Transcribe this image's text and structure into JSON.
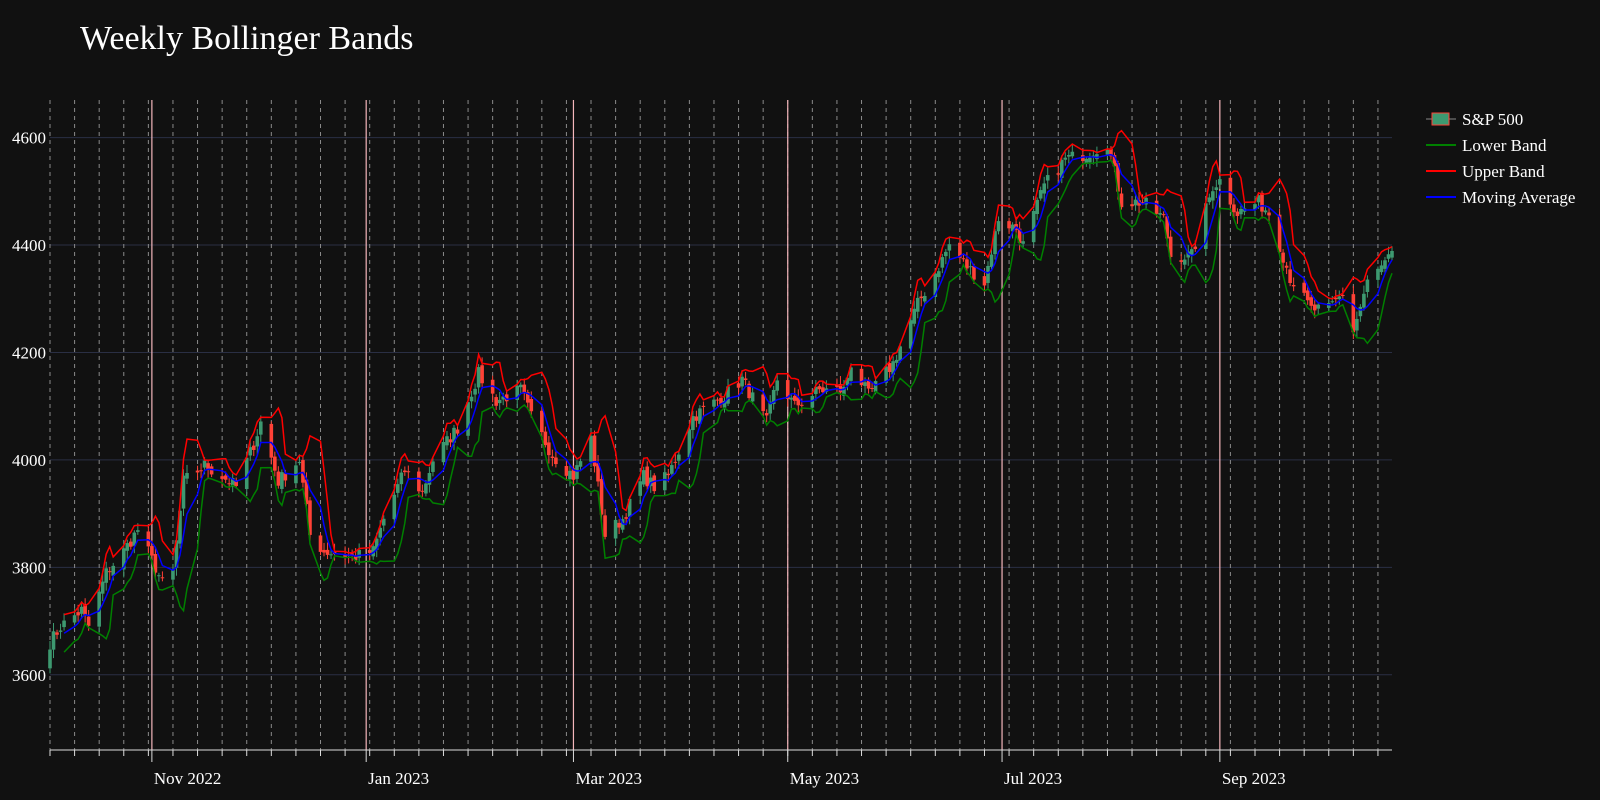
{
  "chart_data": {
    "type": "candlestick",
    "title": "Weekly Bollinger Bands",
    "xlabel": "",
    "ylabel": "",
    "x_range": [
      "2022-10-03",
      "2023-10-20"
    ],
    "ylim": [
      3460,
      4670
    ],
    "y_ticks": [
      3600,
      3800,
      4000,
      4200,
      4400,
      4600
    ],
    "x_ticks": [
      {
        "date": "2022-11-01",
        "label": "Nov 2022"
      },
      {
        "date": "2023-01-01",
        "label": "Jan 2023"
      },
      {
        "date": "2023-03-01",
        "label": "Mar 2023"
      },
      {
        "date": "2023-05-01",
        "label": "May 2023"
      },
      {
        "date": "2023-07-01",
        "label": "Jul 2023"
      },
      {
        "date": "2023-09-01",
        "label": "Sep 2023"
      }
    ],
    "week_starts": [
      "2022-10-03",
      "2022-10-10",
      "2022-10-17",
      "2022-10-24",
      "2022-10-31",
      "2022-11-07",
      "2022-11-14",
      "2022-11-21",
      "2022-11-28",
      "2022-12-05",
      "2022-12-12",
      "2022-12-19",
      "2022-12-26",
      "2023-01-02",
      "2023-01-09",
      "2023-01-16",
      "2023-01-23",
      "2023-01-30",
      "2023-02-06",
      "2023-02-13",
      "2023-02-20",
      "2023-02-27",
      "2023-03-06",
      "2023-03-13",
      "2023-03-20",
      "2023-03-27",
      "2023-04-03",
      "2023-04-10",
      "2023-04-17",
      "2023-04-24",
      "2023-05-01",
      "2023-05-08",
      "2023-05-15",
      "2023-05-22",
      "2023-05-29",
      "2023-06-05",
      "2023-06-12",
      "2023-06-19",
      "2023-06-26",
      "2023-07-03",
      "2023-07-10",
      "2023-07-17",
      "2023-07-24",
      "2023-07-31",
      "2023-08-07",
      "2023-08-14",
      "2023-08-21",
      "2023-08-28",
      "2023-09-04",
      "2023-09-11",
      "2023-09-18",
      "2023-09-25",
      "2023-10-02",
      "2023-10-09",
      "2023-10-16"
    ],
    "month_starts": [
      "2022-11-01",
      "2023-01-01",
      "2023-03-01",
      "2023-05-01",
      "2023-07-01",
      "2023-09-01"
    ],
    "close_anchors": [
      [
        "2022-10-03",
        3660
      ],
      [
        "2022-10-06",
        3690
      ],
      [
        "2022-10-12",
        3720
      ],
      [
        "2022-10-14",
        3690
      ],
      [
        "2022-10-19",
        3790
      ],
      [
        "2022-10-24",
        3830
      ],
      [
        "2022-10-28",
        3870
      ],
      [
        "2022-11-02",
        3800
      ],
      [
        "2022-11-04",
        3770
      ],
      [
        "2022-11-07",
        3790
      ],
      [
        "2022-11-10",
        3960
      ],
      [
        "2022-11-16",
        3990
      ],
      [
        "2022-11-21",
        3970
      ],
      [
        "2022-11-25",
        3950
      ],
      [
        "2022-11-30",
        4030
      ],
      [
        "2022-12-02",
        4070
      ],
      [
        "2022-12-07",
        3960
      ],
      [
        "2022-12-13",
        4000
      ],
      [
        "2022-12-16",
        3860
      ],
      [
        "2022-12-20",
        3830
      ],
      [
        "2022-12-29",
        3820
      ],
      [
        "2023-01-03",
        3830
      ],
      [
        "2023-01-06",
        3890
      ],
      [
        "2023-01-12",
        3980
      ],
      [
        "2023-01-17",
        3940
      ],
      [
        "2023-01-20",
        4000
      ],
      [
        "2023-01-27",
        4060
      ],
      [
        "2023-02-02",
        4160
      ],
      [
        "2023-02-07",
        4110
      ],
      [
        "2023-02-14",
        4130
      ],
      [
        "2023-02-17",
        4080
      ],
      [
        "2023-02-23",
        4010
      ],
      [
        "2023-03-01",
        3970
      ],
      [
        "2023-03-06",
        4040
      ],
      [
        "2023-03-10",
        3860
      ],
      [
        "2023-03-15",
        3890
      ],
      [
        "2023-03-21",
        3970
      ],
      [
        "2023-03-24",
        3950
      ],
      [
        "2023-03-28",
        3970
      ],
      [
        "2023-04-04",
        4080
      ],
      [
        "2023-04-13",
        4120
      ],
      [
        "2023-04-18",
        4150
      ],
      [
        "2023-04-25",
        4070
      ],
      [
        "2023-04-28",
        4150
      ],
      [
        "2023-05-03",
        4100
      ],
      [
        "2023-05-10",
        4130
      ],
      [
        "2023-05-17",
        4130
      ],
      [
        "2023-05-19",
        4180
      ],
      [
        "2023-05-24",
        4120
      ],
      [
        "2023-05-31",
        4180
      ],
      [
        "2023-06-07",
        4290
      ],
      [
        "2023-06-13",
        4360
      ],
      [
        "2023-06-16",
        4400
      ],
      [
        "2023-06-21",
        4360
      ],
      [
        "2023-06-26",
        4330
      ],
      [
        "2023-06-30",
        4450
      ],
      [
        "2023-07-05",
        4430
      ],
      [
        "2023-07-07",
        4400
      ],
      [
        "2023-07-13",
        4510
      ],
      [
        "2023-07-19",
        4560
      ],
      [
        "2023-07-25",
        4570
      ],
      [
        "2023-07-31",
        4590
      ],
      [
        "2023-08-04",
        4480
      ],
      [
        "2023-08-10",
        4480
      ],
      [
        "2023-08-16",
        4450
      ],
      [
        "2023-08-18",
        4380
      ],
      [
        "2023-08-24",
        4380
      ],
      [
        "2023-08-30",
        4510
      ],
      [
        "2023-09-01",
        4520
      ],
      [
        "2023-09-06",
        4460
      ],
      [
        "2023-09-12",
        4480
      ],
      [
        "2023-09-15",
        4460
      ],
      [
        "2023-09-21",
        4340
      ],
      [
        "2023-09-27",
        4280
      ],
      [
        "2023-10-02",
        4280
      ],
      [
        "2023-10-06",
        4310
      ],
      [
        "2023-10-09",
        4240
      ],
      [
        "2023-10-13",
        4330
      ],
      [
        "2023-10-20",
        4380
      ]
    ],
    "series": [
      {
        "name": "S&P 500",
        "type": "candlestick",
        "up_color": "#3d9970",
        "down_color": "#ff4136"
      },
      {
        "name": "Lower Band",
        "type": "line",
        "color": "#008000"
      },
      {
        "name": "Upper Band",
        "type": "line",
        "color": "#ff0000"
      },
      {
        "name": "Moving Average",
        "type": "line",
        "color": "#0000ff"
      }
    ],
    "legend_position": "top-right",
    "grid": true
  }
}
